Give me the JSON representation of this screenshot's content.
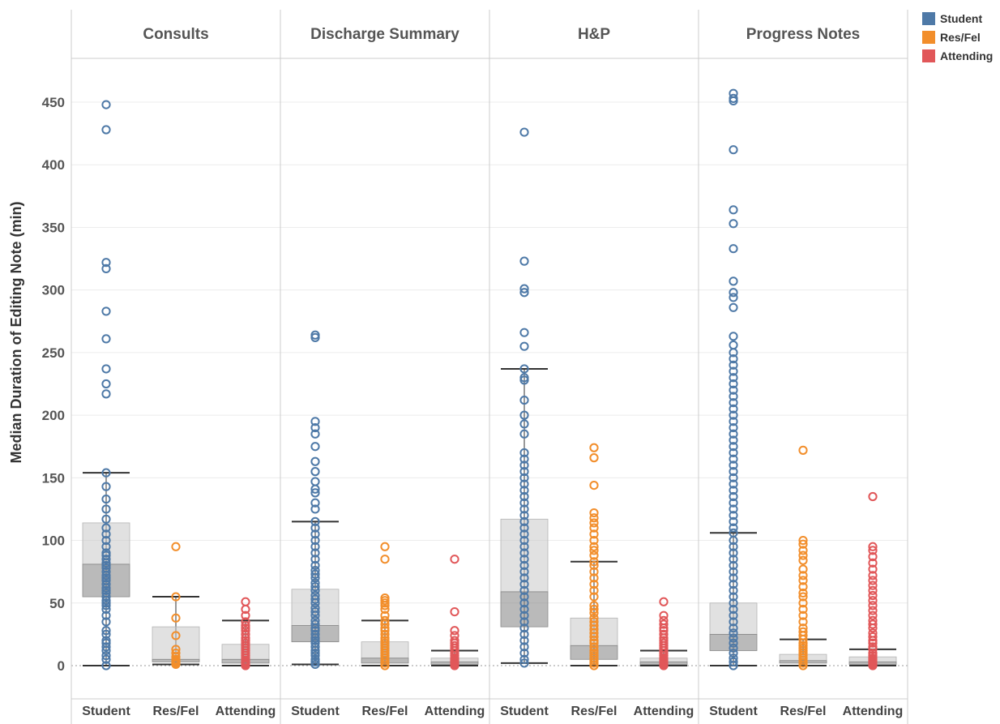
{
  "chart_data": {
    "type": "box",
    "ylabel": "Median Duration of Editing Note (min)",
    "ylim": [
      -25,
      480
    ],
    "yticks": [
      0,
      50,
      100,
      150,
      200,
      250,
      300,
      350,
      400,
      450
    ],
    "panels": [
      "Consults",
      "Discharge Summary",
      "H&P",
      "Progress Notes"
    ],
    "categories": [
      "Student",
      "Res/Fel",
      "Attending"
    ],
    "colors": {
      "Student": "#4e79a7",
      "Res/Fel": "#f28e2b",
      "Attending": "#e15759"
    },
    "legend": {
      "placement": "top-right",
      "entries": [
        {
          "name": "Student",
          "color": "#4e79a7"
        },
        {
          "name": "Res/Fel",
          "color": "#f28e2b"
        },
        {
          "name": "Attending",
          "color": "#e15759"
        }
      ]
    },
    "boxes": [
      {
        "panel": "Consults",
        "category": "Student",
        "whisker_low": 0,
        "q1": 55,
        "median": 81,
        "q3": 114,
        "whisker_high": 154,
        "points": [
          0,
          5,
          8,
          12,
          15,
          18,
          20,
          25,
          28,
          35,
          40,
          45,
          48,
          50,
          52,
          55,
          58,
          60,
          62,
          65,
          68,
          70,
          72,
          75,
          78,
          80,
          82,
          85,
          88,
          90,
          95,
          100,
          105,
          110,
          117,
          125,
          133,
          143,
          154,
          217,
          225,
          237,
          261,
          283,
          317,
          322,
          428,
          448
        ]
      },
      {
        "panel": "Consults",
        "category": "Res/Fel",
        "whisker_low": 1,
        "q1": 3,
        "median": 5,
        "q3": 31,
        "whisker_high": 55,
        "points": [
          1,
          2,
          3,
          4,
          5,
          7,
          10,
          13,
          24,
          38,
          55,
          95
        ]
      },
      {
        "panel": "Consults",
        "category": "Attending",
        "whisker_low": 0,
        "q1": 2,
        "median": 5,
        "q3": 17,
        "whisker_high": 36,
        "points": [
          0,
          1,
          2,
          3,
          4,
          6,
          8,
          10,
          12,
          14,
          16,
          18,
          20,
          22,
          25,
          28,
          30,
          32,
          35,
          40,
          45,
          51
        ]
      },
      {
        "panel": "Discharge Summary",
        "category": "Student",
        "whisker_low": 1,
        "q1": 19,
        "median": 32,
        "q3": 61,
        "whisker_high": 115,
        "points": [
          1,
          3,
          5,
          8,
          10,
          12,
          15,
          18,
          20,
          22,
          25,
          28,
          30,
          33,
          36,
          40,
          43,
          46,
          50,
          53,
          56,
          60,
          63,
          66,
          70,
          73,
          76,
          80,
          85,
          90,
          95,
          100,
          105,
          110,
          115,
          125,
          130,
          138,
          141,
          147,
          155,
          163,
          175,
          185,
          190,
          195,
          262,
          264
        ]
      },
      {
        "panel": "Discharge Summary",
        "category": "Res/Fel",
        "whisker_low": 0,
        "q1": 2,
        "median": 6,
        "q3": 19,
        "whisker_high": 36,
        "points": [
          0,
          2,
          4,
          6,
          8,
          10,
          12,
          14,
          16,
          18,
          20,
          22,
          25,
          28,
          30,
          33,
          36,
          40,
          45,
          48,
          50,
          52,
          54,
          85,
          95
        ]
      },
      {
        "panel": "Discharge Summary",
        "category": "Attending",
        "whisker_low": 0,
        "q1": 1,
        "median": 3,
        "q3": 6,
        "whisker_high": 12,
        "points": [
          0,
          1,
          2,
          3,
          4,
          5,
          6,
          8,
          10,
          12,
          14,
          16,
          18,
          20,
          24,
          28,
          43,
          85
        ]
      },
      {
        "panel": "H&P",
        "category": "Student",
        "whisker_low": 2,
        "q1": 31,
        "median": 59,
        "q3": 117,
        "whisker_high": 237,
        "points": [
          2,
          5,
          10,
          15,
          20,
          25,
          30,
          35,
          40,
          45,
          50,
          55,
          60,
          65,
          70,
          75,
          80,
          85,
          90,
          95,
          100,
          105,
          110,
          115,
          120,
          125,
          130,
          135,
          140,
          145,
          150,
          155,
          160,
          165,
          170,
          185,
          193,
          200,
          212,
          228,
          230,
          237,
          255,
          266,
          298,
          301,
          323,
          426
        ]
      },
      {
        "panel": "H&P",
        "category": "Res/Fel",
        "whisker_low": 0,
        "q1": 5,
        "median": 16,
        "q3": 38,
        "whisker_high": 83,
        "points": [
          0,
          2,
          4,
          6,
          8,
          10,
          12,
          15,
          18,
          20,
          23,
          26,
          29,
          32,
          35,
          38,
          42,
          45,
          48,
          55,
          60,
          65,
          70,
          75,
          80,
          83,
          88,
          92,
          95,
          100,
          105,
          110,
          114,
          118,
          122,
          144,
          166,
          174
        ]
      },
      {
        "panel": "H&P",
        "category": "Attending",
        "whisker_low": 0,
        "q1": 1,
        "median": 3,
        "q3": 6,
        "whisker_high": 12,
        "points": [
          0,
          1,
          2,
          3,
          4,
          5,
          6,
          8,
          10,
          12,
          14,
          16,
          18,
          20,
          22,
          25,
          28,
          30,
          33,
          36,
          40,
          51
        ]
      },
      {
        "panel": "Progress Notes",
        "category": "Student",
        "whisker_low": 0,
        "q1": 12,
        "median": 25,
        "q3": 50,
        "whisker_high": 106,
        "points": [
          0,
          3,
          6,
          10,
          14,
          18,
          22,
          26,
          30,
          35,
          40,
          45,
          50,
          55,
          60,
          65,
          70,
          75,
          80,
          85,
          90,
          95,
          100,
          106,
          110,
          115,
          120,
          125,
          130,
          135,
          140,
          145,
          150,
          155,
          160,
          165,
          170,
          175,
          180,
          185,
          190,
          195,
          200,
          205,
          210,
          215,
          220,
          225,
          230,
          235,
          240,
          245,
          250,
          256,
          263,
          286,
          294,
          298,
          307,
          333,
          353,
          364,
          412,
          451,
          453,
          457
        ]
      },
      {
        "panel": "Progress Notes",
        "category": "Res/Fel",
        "whisker_low": 0,
        "q1": 2,
        "median": 4,
        "q3": 9,
        "whisker_high": 21,
        "points": [
          0,
          2,
          4,
          6,
          8,
          10,
          12,
          14,
          16,
          18,
          21,
          24,
          27,
          30,
          35,
          40,
          45,
          50,
          55,
          58,
          63,
          68,
          72,
          77,
          84,
          88,
          92,
          97,
          100,
          172
        ]
      },
      {
        "panel": "Progress Notes",
        "category": "Attending",
        "whisker_low": 0,
        "q1": 1,
        "median": 3,
        "q3": 7,
        "whisker_high": 13,
        "points": [
          0,
          1,
          2,
          3,
          4,
          5,
          6,
          8,
          10,
          13,
          15,
          18,
          20,
          23,
          26,
          30,
          33,
          36,
          40,
          44,
          48,
          52,
          56,
          60,
          64,
          68,
          72,
          77,
          82,
          87,
          92,
          95,
          135
        ]
      }
    ]
  }
}
